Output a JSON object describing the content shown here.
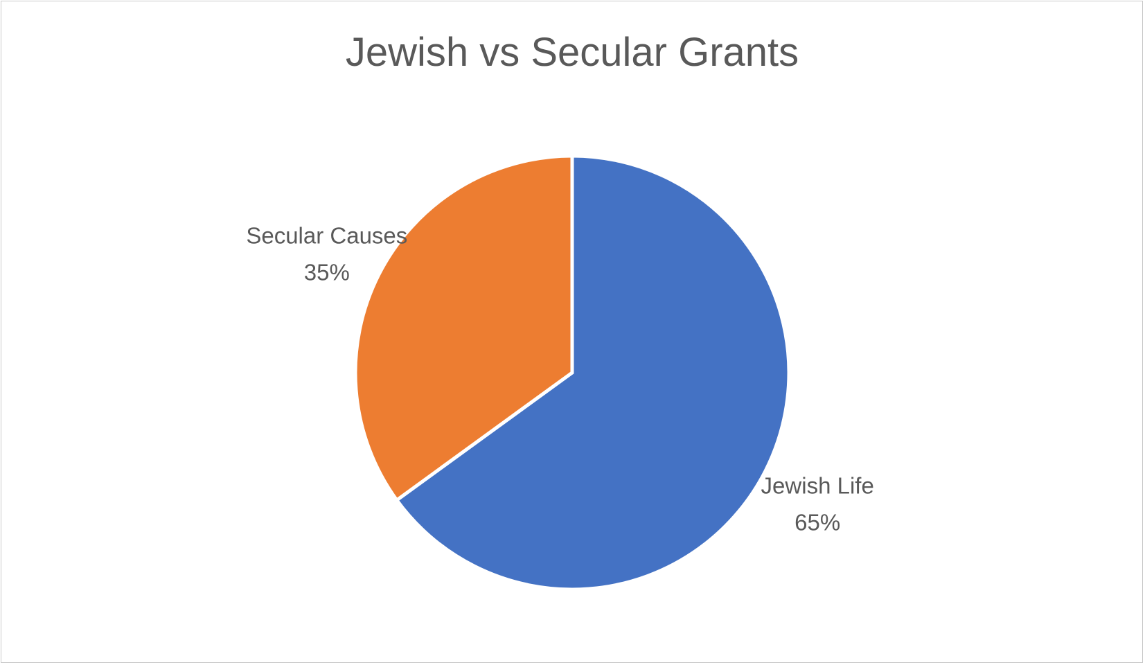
{
  "chart_data": {
    "type": "pie",
    "title": "Jewish vs Secular Grants",
    "slices": [
      {
        "name": "Jewish Life",
        "value": 65,
        "label": "65%",
        "color": "#4472C4"
      },
      {
        "name": "Secular Causes",
        "value": 35,
        "label": "35%",
        "color": "#ED7D31"
      }
    ],
    "start_angle_deg": 0,
    "direction": "clockwise",
    "legend": "none",
    "data_labels": "outside"
  }
}
